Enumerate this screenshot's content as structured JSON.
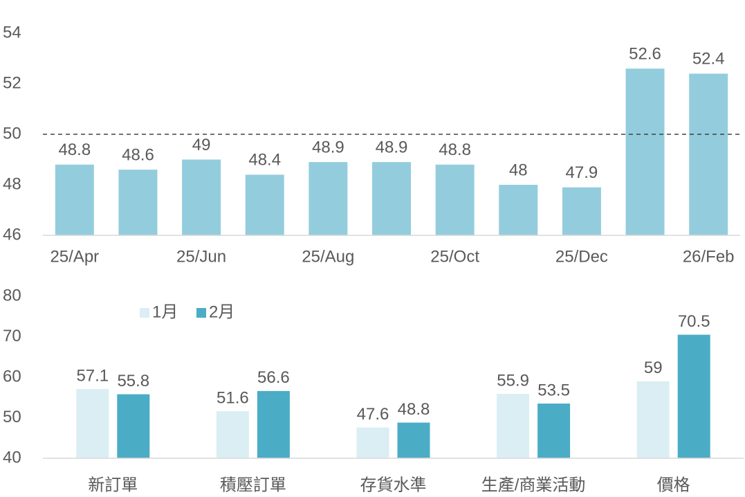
{
  "chart_data": [
    {
      "type": "bar",
      "categories": [
        "25/Apr",
        null,
        "25/Jun",
        null,
        "25/Aug",
        null,
        "25/Oct",
        null,
        "25/Dec",
        null,
        "26/Feb"
      ],
      "values": [
        48.8,
        48.6,
        49,
        48.4,
        48.9,
        48.9,
        48.8,
        48,
        47.9,
        52.6,
        52.4
      ],
      "color": "#93cddd",
      "ylim": [
        46,
        54
      ],
      "yticks": [
        46,
        48,
        50,
        52,
        54
      ],
      "reference_line": 50
    },
    {
      "type": "grouped_bar",
      "categories": [
        "新訂單",
        "積壓訂單",
        "存貨水準",
        "生產/商業活動",
        "價格"
      ],
      "series": [
        {
          "name": "1月",
          "color": "#daeef3",
          "values": [
            57.1,
            51.6,
            47.6,
            55.9,
            59
          ]
        },
        {
          "name": "2月",
          "color": "#4bacc6",
          "values": [
            55.8,
            56.6,
            48.8,
            53.5,
            70.5
          ]
        }
      ],
      "ylim": [
        40,
        80
      ],
      "yticks": [
        40,
        50,
        60,
        70,
        80
      ],
      "legend": "top-left"
    }
  ]
}
